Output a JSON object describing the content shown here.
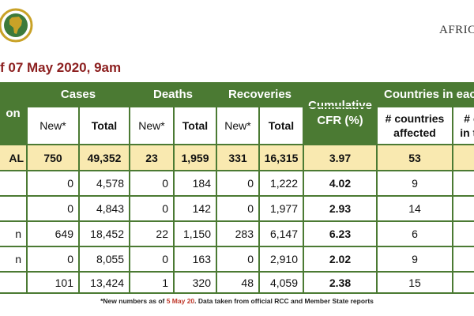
{
  "header": {
    "brand": "AFRICA",
    "subtitle": "f 07 May 2020, 9am"
  },
  "table": {
    "col0_header": "on",
    "groups": [
      "Cases",
      "Deaths",
      "Recoveries"
    ],
    "cfr_header": "Cumulative CFR (%)",
    "countries_header": "Countries in eac",
    "sub_new": "New*",
    "sub_total": "Total",
    "affected_header": "# countries affected",
    "partial_header": "# c in th",
    "rows": [
      {
        "label": "AL",
        "cases_new": "750",
        "cases_total": "49,352",
        "deaths_new": "23",
        "deaths_total": "1,959",
        "rec_new": "331",
        "rec_total": "16,315",
        "cfr": "3.97",
        "affected": "53"
      },
      {
        "label": "",
        "cases_new": "0",
        "cases_total": "4,578",
        "deaths_new": "0",
        "deaths_total": "184",
        "rec_new": "0",
        "rec_total": "1,222",
        "cfr": "4.02",
        "affected": "9"
      },
      {
        "label": "",
        "cases_new": "0",
        "cases_total": "4,843",
        "deaths_new": "0",
        "deaths_total": "142",
        "rec_new": "0",
        "rec_total": "1,977",
        "cfr": "2.93",
        "affected": "14"
      },
      {
        "label": "n",
        "cases_new": "649",
        "cases_total": "18,452",
        "deaths_new": "22",
        "deaths_total": "1,150",
        "rec_new": "283",
        "rec_total": "6,147",
        "cfr": "6.23",
        "affected": "6"
      },
      {
        "label": "n",
        "cases_new": "0",
        "cases_total": "8,055",
        "deaths_new": "0",
        "deaths_total": "163",
        "rec_new": "0",
        "rec_total": "2,910",
        "cfr": "2.02",
        "affected": "9"
      },
      {
        "label": "",
        "cases_new": "101",
        "cases_total": "13,424",
        "deaths_new": "1",
        "deaths_total": "320",
        "rec_new": "48",
        "rec_total": "4,059",
        "cfr": "2.38",
        "affected": "15"
      }
    ]
  },
  "footnote": {
    "prefix": "*New numbers as of ",
    "date": "5 May 20",
    "suffix": ". Data taken from official RCC and Member State reports"
  },
  "colors": {
    "header_green": "#4b7a33",
    "total_row": "#f9e9b0",
    "subtitle": "#8c1f1f"
  }
}
